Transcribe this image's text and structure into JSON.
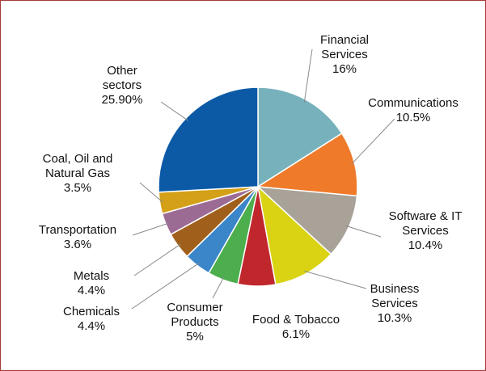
{
  "chart_data": {
    "type": "pie",
    "categories": [
      "Financial Services",
      "Communications",
      "Software & IT Services",
      "Business Services",
      "Food & Tobacco",
      "Consumer Products",
      "Chemicals",
      "Metals",
      "Transportation",
      "Coal, Oil and Natural Gas",
      "Other sectors"
    ],
    "values": [
      16,
      10.5,
      10.4,
      10.3,
      6.1,
      5,
      4.4,
      4.4,
      3.6,
      3.5,
      25.9
    ],
    "value_labels": [
      "16%",
      "10.5%",
      "10.4%",
      "10.3%",
      "6.1%",
      "5%",
      "4.4%",
      "4.4%",
      "3.6%",
      "3.5%",
      "25.90%"
    ],
    "colors": [
      "#77b2bc",
      "#ef7a2a",
      "#a8a298",
      "#d9d314",
      "#c0272d",
      "#4cae4c",
      "#3a86c8",
      "#a0601c",
      "#9c6b94",
      "#d4a017",
      "#0c5aa6"
    ]
  }
}
